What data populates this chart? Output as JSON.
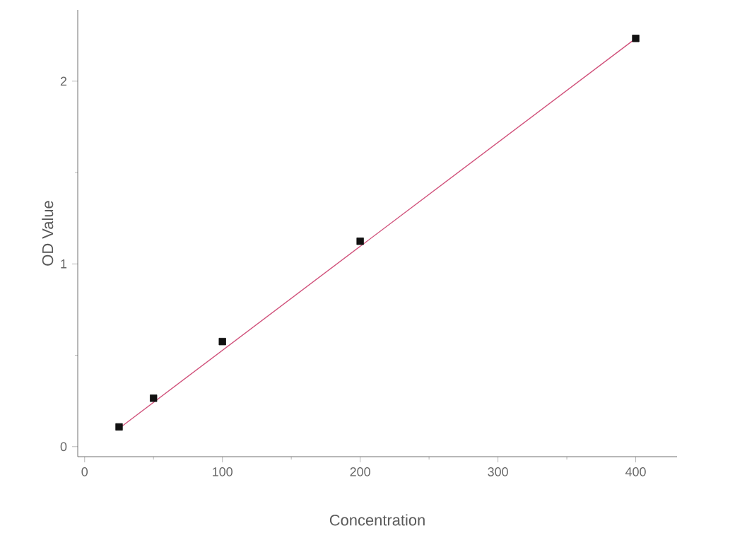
{
  "chart_data": {
    "type": "scatter",
    "xlabel": "Concentration",
    "ylabel": "OD Value",
    "series": [
      {
        "color": "#111111",
        "marker": "square",
        "x": [
          25,
          50,
          100,
          200,
          400
        ],
        "values": [
          0.108,
          0.265,
          0.575,
          1.124,
          2.234
        ]
      },
      {
        "type": "line",
        "color": "#d0507a",
        "marker": "none",
        "line_style": "solid",
        "x": [
          25,
          400
        ],
        "values": [
          0.1,
          2.234
        ]
      }
    ],
    "xlim": [
      -5,
      430
    ],
    "ylim": [
      -0.055,
      2.39
    ],
    "xticks": [
      0,
      100,
      200,
      300,
      400
    ],
    "yticks": [
      0,
      1,
      2
    ],
    "grid": false
  }
}
